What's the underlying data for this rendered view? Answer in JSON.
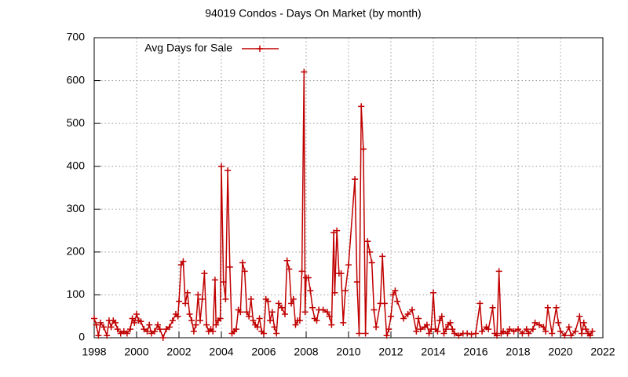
{
  "chart_data": {
    "type": "line",
    "title": "94019 Condos - Days On Market (by month)",
    "xlim": [
      1998,
      2022
    ],
    "xticks": [
      1998,
      2000,
      2002,
      2004,
      2006,
      2008,
      2010,
      2012,
      2014,
      2016,
      2018,
      2020,
      2022
    ],
    "ylim": [
      0,
      700
    ],
    "yticks": [
      0,
      100,
      200,
      300,
      400,
      500,
      600,
      700
    ],
    "grid": true,
    "legend": "top-left",
    "x": [
      1998.0,
      1998.1,
      1998.2,
      1998.3,
      1998.45,
      1998.6,
      1998.7,
      1998.8,
      1998.9,
      1999.0,
      1999.1,
      1999.25,
      1999.4,
      1999.55,
      1999.7,
      1999.8,
      1999.9,
      2000.0,
      2000.1,
      2000.2,
      2000.35,
      2000.5,
      2000.6,
      2000.7,
      2000.85,
      2001.0,
      2001.1,
      2001.25,
      2001.4,
      2001.55,
      2001.7,
      2001.85,
      2001.95,
      2002.0,
      2002.1,
      2002.2,
      2002.3,
      2002.4,
      2002.5,
      2002.6,
      2002.7,
      2002.8,
      2002.9,
      2003.0,
      2003.1,
      2003.2,
      2003.3,
      2003.4,
      2003.5,
      2003.6,
      2003.7,
      2003.75,
      2003.85,
      2003.95,
      2004.0,
      2004.1,
      2004.2,
      2004.3,
      2004.4,
      2004.5,
      2004.6,
      2004.7,
      2004.8,
      2004.9,
      2005.0,
      2005.1,
      2005.2,
      2005.3,
      2005.4,
      2005.5,
      2005.6,
      2005.7,
      2005.8,
      2005.9,
      2006.0,
      2006.1,
      2006.2,
      2006.3,
      2006.4,
      2006.5,
      2006.6,
      2006.7,
      2006.85,
      2007.0,
      2007.1,
      2007.2,
      2007.3,
      2007.4,
      2007.5,
      2007.6,
      2007.7,
      2007.8,
      2007.9,
      2007.95,
      2008.0,
      2008.1,
      2008.2,
      2008.3,
      2008.4,
      2008.5,
      2008.6,
      2008.8,
      2009.0,
      2009.1,
      2009.2,
      2009.3,
      2009.35,
      2009.45,
      2009.55,
      2009.65,
      2009.75,
      2009.85,
      2010.0,
      2010.3,
      2010.4,
      2010.5,
      2010.6,
      2010.7,
      2010.8,
      2010.9,
      2011.0,
      2011.1,
      2011.2,
      2011.3,
      2011.5,
      2011.6,
      2011.7,
      2011.8,
      2011.9,
      2012.0,
      2012.1,
      2012.2,
      2012.3,
      2012.6,
      2012.8,
      2013.0,
      2013.2,
      2013.3,
      2013.4,
      2013.6,
      2013.7,
      2013.8,
      2013.9,
      2014.0,
      2014.1,
      2014.2,
      2014.3,
      2014.4,
      2014.5,
      2014.6,
      2014.7,
      2014.8,
      2014.9,
      2015.0,
      2015.2,
      2015.4,
      2015.6,
      2015.8,
      2016.0,
      2016.2,
      2016.3,
      2016.5,
      2016.6,
      2016.8,
      2016.9,
      2017.0,
      2017.1,
      2017.2,
      2017.3,
      2017.5,
      2017.6,
      2017.8,
      2018.0,
      2018.2,
      2018.4,
      2018.5,
      2018.7,
      2018.8,
      2019.0,
      2019.2,
      2019.3,
      2019.4,
      2019.6,
      2019.8,
      2019.9,
      2020.0,
      2020.2,
      2020.4,
      2020.5,
      2020.7,
      2020.9,
      2021.0,
      2021.1,
      2021.2,
      2021.3,
      2021.4,
      2021.5
    ],
    "series": [
      {
        "name": "Avg Days for Sale",
        "color": "#c00000",
        "values": [
          45,
          30,
          5,
          35,
          25,
          5,
          40,
          25,
          40,
          35,
          20,
          10,
          15,
          10,
          20,
          45,
          35,
          55,
          40,
          38,
          20,
          15,
          30,
          10,
          15,
          30,
          20,
          0,
          20,
          25,
          40,
          55,
          50,
          85,
          170,
          178,
          80,
          105,
          55,
          40,
          15,
          30,
          100,
          40,
          90,
          150,
          30,
          15,
          20,
          15,
          135,
          30,
          40,
          45,
          400,
          130,
          90,
          390,
          165,
          10,
          15,
          20,
          65,
          60,
          175,
          155,
          60,
          50,
          90,
          40,
          30,
          25,
          45,
          15,
          10,
          90,
          85,
          40,
          60,
          25,
          10,
          80,
          70,
          55,
          180,
          160,
          80,
          90,
          30,
          40,
          40,
          155,
          620,
          60,
          140,
          140,
          110,
          70,
          45,
          40,
          65,
          65,
          60,
          50,
          30,
          245,
          105,
          250,
          150,
          150,
          35,
          110,
          170,
          370,
          130,
          10,
          540,
          440,
          10,
          225,
          200,
          175,
          65,
          25,
          80,
          190,
          80,
          5,
          20,
          50,
          100,
          110,
          85,
          45,
          55,
          65,
          15,
          45,
          20,
          25,
          30,
          10,
          20,
          105,
          20,
          15,
          40,
          50,
          10,
          20,
          30,
          35,
          20,
          10,
          5,
          10,
          10,
          8,
          10,
          80,
          15,
          25,
          20,
          70,
          10,
          5,
          155,
          10,
          15,
          10,
          20,
          15,
          20,
          10,
          20,
          10,
          20,
          35,
          30,
          25,
          15,
          70,
          10,
          70,
          35,
          15,
          5,
          25,
          5,
          15,
          50,
          10,
          35,
          20,
          10,
          5,
          15
        ]
      }
    ]
  }
}
